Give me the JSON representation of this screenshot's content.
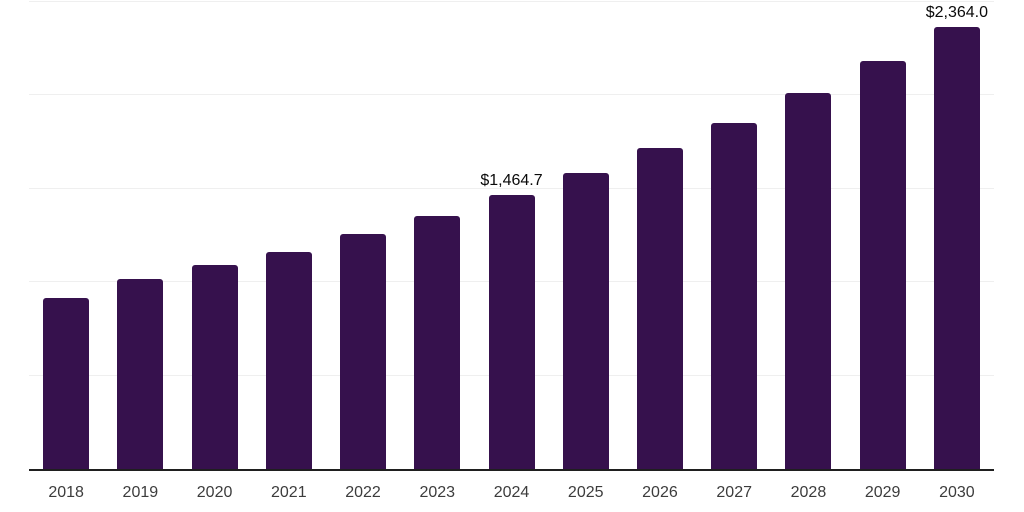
{
  "chart_data": {
    "type": "bar",
    "title": "",
    "xlabel": "",
    "ylabel": "",
    "categories": [
      "2018",
      "2019",
      "2020",
      "2021",
      "2022",
      "2023",
      "2024",
      "2025",
      "2026",
      "2027",
      "2028",
      "2029",
      "2030"
    ],
    "values": [
      913,
      1015,
      1090,
      1160,
      1256,
      1352,
      1464.7,
      1582,
      1716,
      1850,
      2011,
      2182,
      2364
    ],
    "value_labels": {
      "2024": "$1,464.7",
      "2030": "$2,364.0"
    },
    "ylim": [
      0,
      2500
    ],
    "gridline_values": [
      500,
      1000,
      1500,
      2000,
      2500
    ],
    "grid": "horizontal-only",
    "legend_position": "none",
    "y_axis_labels_visible": false
  },
  "style": {
    "bar_color": "#36114D",
    "gridline_color": "#efefef",
    "axis_line_color": "#1f1f1f",
    "tick_label_color": "#3c3c3c",
    "value_label_color": "#0a0a0a",
    "background_color": "#ffffff"
  }
}
